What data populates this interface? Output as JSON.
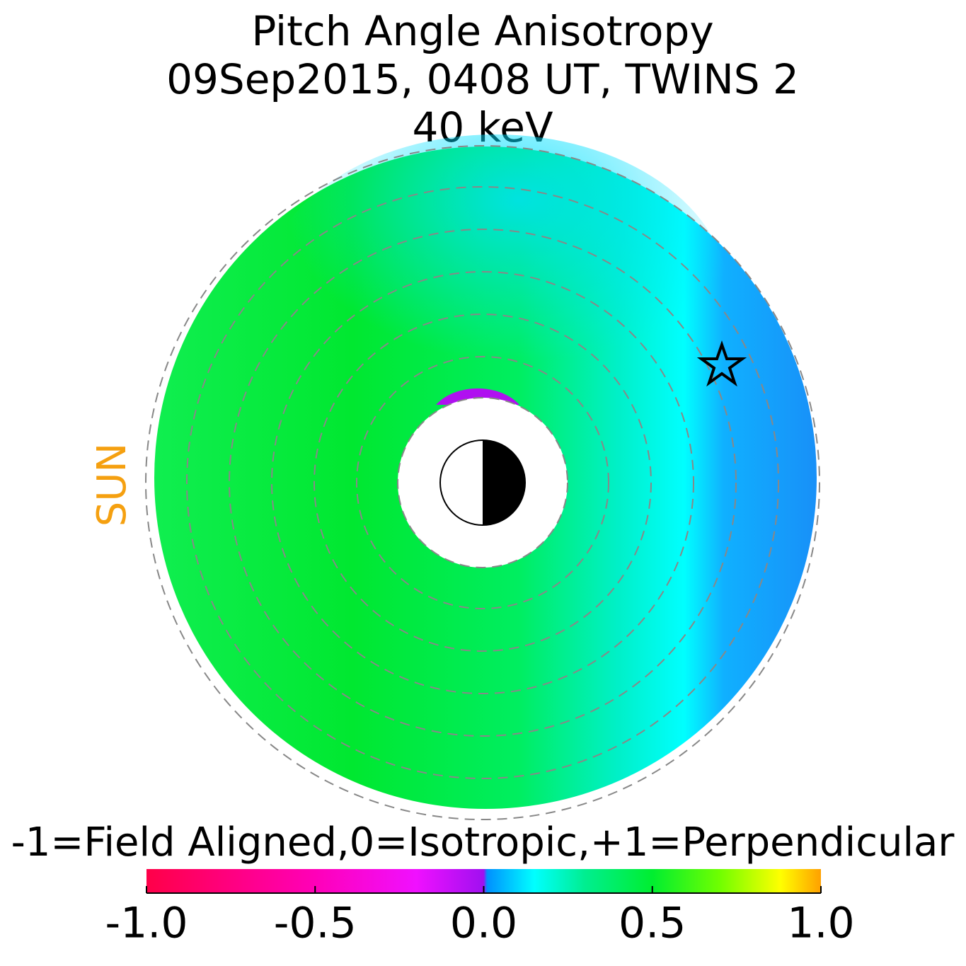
{
  "chart_data": {
    "type": "polar_map",
    "title": "Pitch Angle Anisotropy",
    "subtitle": "09Sep2015, 0408 UT,  TWINS 2",
    "energy": "40 keV",
    "sun_label": "SUN",
    "colorbar_label": "-1=Field Aligned,0=Isotropic,+1=Perpendicular",
    "clim": [
      -1,
      1
    ],
    "cticks": [
      {
        "value": -1,
        "label": "-1.0"
      },
      {
        "value": -0.5,
        "label": "-0.5"
      },
      {
        "value": 0,
        "label": "0.0"
      },
      0.5,
      {
        "value": 1,
        "label": "1.0"
      }
    ],
    "colormap": [
      {
        "value": -1,
        "color": "#ff0048"
      },
      {
        "value": -0.5,
        "color": "#ff00b8"
      },
      {
        "value": -0.2,
        "color": "#f010ff"
      },
      {
        "value": 0,
        "color": "#a010f0"
      },
      {
        "value": 0.01,
        "color": "#0090ff"
      },
      {
        "value": 0.15,
        "color": "#00ffff"
      },
      {
        "value": 0.3,
        "color": "#00ee90"
      },
      {
        "value": 0.5,
        "color": "#00ee30"
      },
      {
        "value": 0.7,
        "color": "#70ff00"
      },
      {
        "value": 0.88,
        "color": "#ffff00"
      },
      {
        "value": 1,
        "color": "#ffa000"
      }
    ]
  }
}
